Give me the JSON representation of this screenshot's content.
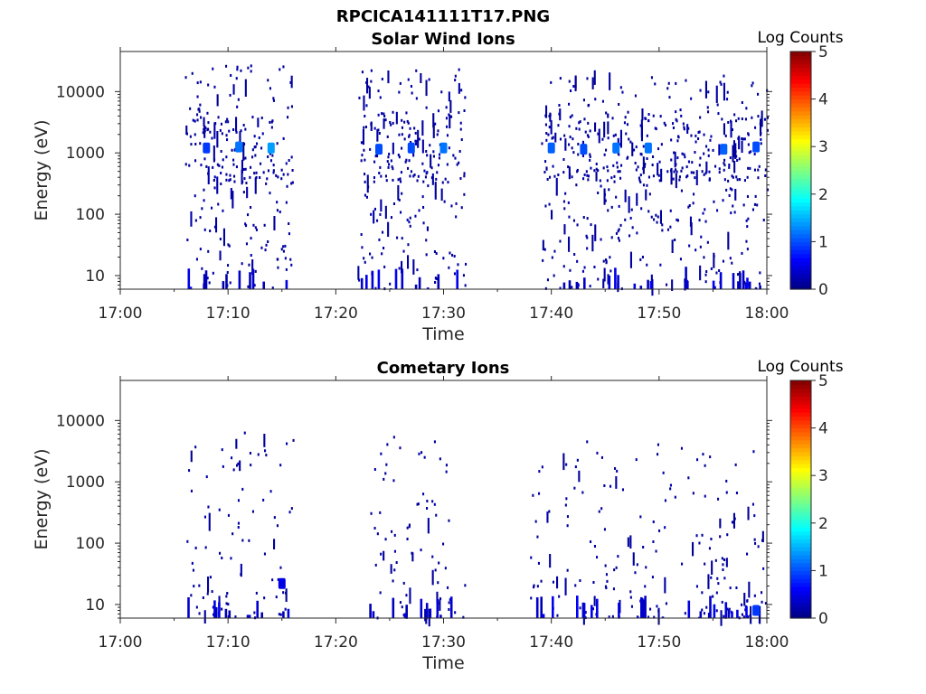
{
  "figure": {
    "title": "RPCICA141111T17.PNG"
  },
  "chart_data": [
    {
      "type": "heatmap",
      "title": "Solar Wind Ions",
      "xlabel": "Time",
      "ylabel": "Energy (eV)",
      "y_scale": "log",
      "xlim": [
        "17:00",
        "18:00"
      ],
      "ylim": [
        6,
        45000
      ],
      "x_ticks": [
        "17:00",
        "17:10",
        "17:20",
        "17:30",
        "17:40",
        "17:50",
        "18:00"
      ],
      "y_ticks": [
        "10",
        "100",
        "1000",
        "10000"
      ],
      "colorbar": {
        "label": "Log Counts",
        "range": [
          0,
          5
        ],
        "ticks": [
          "0",
          "1",
          "2",
          "3",
          "4",
          "5"
        ],
        "colormap": "jet"
      },
      "data_gaps": [
        [
          "17:00",
          "17:06"
        ],
        [
          "17:16",
          "17:22"
        ],
        [
          "17:32",
          "17:39"
        ]
      ],
      "clusters": [
        {
          "t_start": "17:06",
          "t_end": "17:16",
          "energy_range_eV": [
            6,
            28000
          ],
          "peak_energy_eV": 1200,
          "peak_log_counts": 1.4
        },
        {
          "t_start": "17:22",
          "t_end": "17:32",
          "energy_range_eV": [
            6,
            23000
          ],
          "peak_energy_eV": 1200,
          "peak_log_counts": 1.2
        },
        {
          "t_start": "17:39",
          "t_end": "18:00",
          "energy_range_eV": [
            6,
            18000
          ],
          "peak_energy_eV": 1200,
          "peak_log_counts": 1.2
        }
      ],
      "peaks": [
        {
          "time": "17:08",
          "energy_eV": 1200,
          "log_counts": 0.9
        },
        {
          "time": "17:11",
          "energy_eV": 1250,
          "log_counts": 1.2
        },
        {
          "time": "17:14",
          "energy_eV": 1200,
          "log_counts": 1.4
        },
        {
          "time": "17:24",
          "energy_eV": 1150,
          "log_counts": 1.0
        },
        {
          "time": "17:27",
          "energy_eV": 1200,
          "log_counts": 1.0
        },
        {
          "time": "17:30",
          "energy_eV": 1200,
          "log_counts": 1.2
        },
        {
          "time": "17:40",
          "energy_eV": 1200,
          "log_counts": 1.1
        },
        {
          "time": "17:43",
          "energy_eV": 1150,
          "log_counts": 1.0
        },
        {
          "time": "17:46",
          "energy_eV": 1200,
          "log_counts": 1.2
        },
        {
          "time": "17:49",
          "energy_eV": 1200,
          "log_counts": 1.2
        },
        {
          "time": "17:56",
          "energy_eV": 1150,
          "log_counts": 1.1
        },
        {
          "time": "17:59",
          "energy_eV": 1250,
          "log_counts": 1.0
        }
      ],
      "background_log_counts": 0,
      "grid": false
    },
    {
      "type": "heatmap",
      "title": "Cometary Ions",
      "xlabel": "Time",
      "ylabel": "Energy (eV)",
      "y_scale": "log",
      "xlim": [
        "17:00",
        "18:00"
      ],
      "ylim": [
        6,
        45000
      ],
      "x_ticks": [
        "17:00",
        "17:10",
        "17:20",
        "17:30",
        "17:40",
        "17:50",
        "18:00"
      ],
      "y_ticks": [
        "10",
        "100",
        "1000",
        "10000"
      ],
      "colorbar": {
        "label": "Log Counts",
        "range": [
          0,
          5
        ],
        "ticks": [
          "0",
          "1",
          "2",
          "3",
          "4",
          "5"
        ],
        "colormap": "jet"
      },
      "data_gaps": [
        [
          "17:00",
          "17:06"
        ],
        [
          "17:16",
          "17:23"
        ],
        [
          "17:32",
          "17:38"
        ]
      ],
      "clusters": [
        {
          "t_start": "17:06",
          "t_end": "17:16",
          "energy_range_eV": [
            6,
            8500
          ],
          "peak_energy_eV": 22,
          "peak_log_counts": 0.5
        },
        {
          "t_start": "17:23",
          "t_end": "17:32",
          "energy_range_eV": [
            6,
            5500
          ],
          "peak_energy_eV": 8,
          "peak_log_counts": 0.4
        },
        {
          "t_start": "17:38",
          "t_end": "18:00",
          "energy_range_eV": [
            6,
            4500
          ],
          "peak_energy_eV": 8,
          "peak_log_counts": 0.9
        }
      ],
      "peaks": [
        {
          "time": "17:15",
          "energy_eV": 22,
          "log_counts": 0.5
        },
        {
          "time": "17:59",
          "energy_eV": 8,
          "log_counts": 0.9
        }
      ],
      "background_log_counts": 0,
      "grid": false
    }
  ]
}
